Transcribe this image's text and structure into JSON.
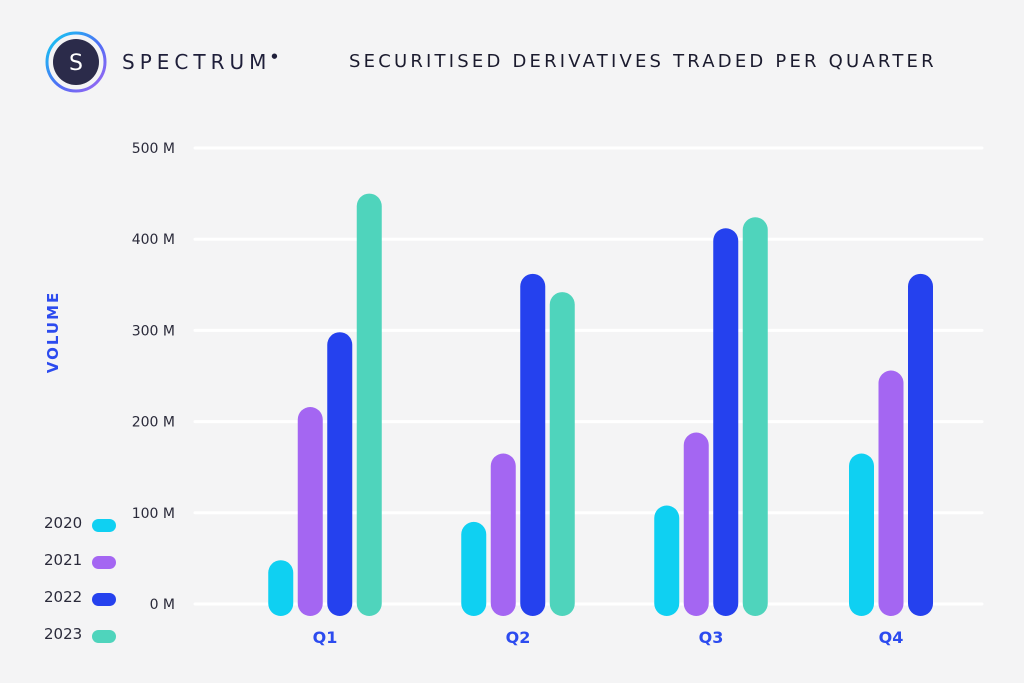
{
  "brand": {
    "name": "SPECTRUM",
    "logo_letter": "S"
  },
  "colors": {
    "2020": "#0fd0f2",
    "2021": "#a466f2",
    "2022": "#2541ee",
    "2023": "#4fd4bc",
    "accent": "#2c4bef",
    "grid": "#ffffff"
  },
  "chart_data": {
    "type": "bar",
    "title": "SECURITISED DERIVATIVES TRADED PER QUARTER",
    "xlabel": "",
    "ylabel": "VOLUME",
    "categories": [
      "Q1",
      "Q2",
      "Q3",
      "Q4"
    ],
    "yticks": [
      "0 M",
      "100 M",
      "200 M",
      "300 M",
      "400 M",
      "500 M"
    ],
    "ylim": [
      0,
      500
    ],
    "grid": true,
    "legend_position": "bottom-left",
    "series": [
      {
        "name": "2020",
        "values": [
          48,
          90,
          108,
          165
        ]
      },
      {
        "name": "2021",
        "values": [
          216,
          165,
          188,
          256
        ]
      },
      {
        "name": "2022",
        "values": [
          298,
          362,
          412,
          362
        ]
      },
      {
        "name": "2023",
        "values": [
          450,
          342,
          424,
          null
        ]
      }
    ]
  }
}
